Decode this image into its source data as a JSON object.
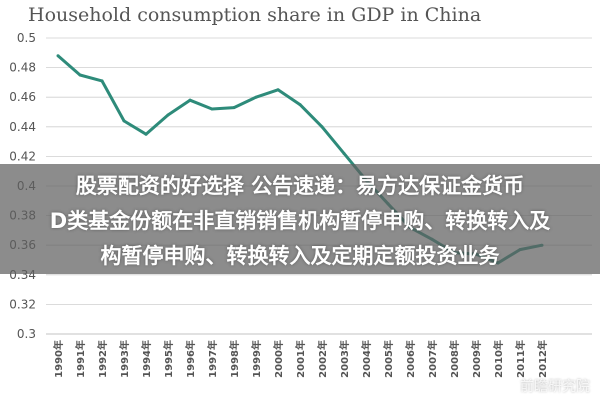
{
  "chart_data": {
    "type": "line",
    "title": "Household consumption share in GDP in China",
    "xlabel": "",
    "ylabel": "",
    "x": [
      "1990年",
      "1991年",
      "1992年",
      "1993年",
      "1994年",
      "1995年",
      "1996年",
      "1997年",
      "1998年",
      "1999年",
      "2000年",
      "2001年",
      "2002年",
      "2003年",
      "2004年",
      "2005年",
      "2006年",
      "2007年",
      "2008年",
      "2009年",
      "2010年",
      "2011年",
      "2012年"
    ],
    "series": [
      {
        "values": [
          0.488,
          0.475,
          0.471,
          0.444,
          0.435,
          0.448,
          0.458,
          0.452,
          0.453,
          0.46,
          0.465,
          0.455,
          0.44,
          0.422,
          0.404,
          0.388,
          0.372,
          0.364,
          0.355,
          0.354,
          0.348,
          0.357,
          0.36
        ]
      }
    ],
    "ylim": [
      0.3,
      0.5
    ],
    "yticks": [
      "0.5",
      "0.48",
      "0.46",
      "0.44",
      "0.42",
      "0.4",
      "0.38",
      "0.36",
      "0.34",
      "0.32",
      "0.3"
    ],
    "ytick_values": [
      0.5,
      0.48,
      0.46,
      0.44,
      0.42,
      0.4,
      0.38,
      0.36,
      0.34,
      0.32,
      0.3
    ],
    "grid": true,
    "legend": "none",
    "colors": {
      "line": "#2e8b7a",
      "grid": "#cfcfcf",
      "axis_text": "#555555",
      "background": "#ffffff"
    }
  },
  "overlay_text": {
    "line1": "股票配资的好选择 公告速递：易方达保证金货币",
    "line2": "D类基金份额在非直销销售机构暂停申购、转换转入及",
    "line3": "构暂停申购、转换转入及定期定额投资业务"
  },
  "watermark": "前瞻研究院"
}
